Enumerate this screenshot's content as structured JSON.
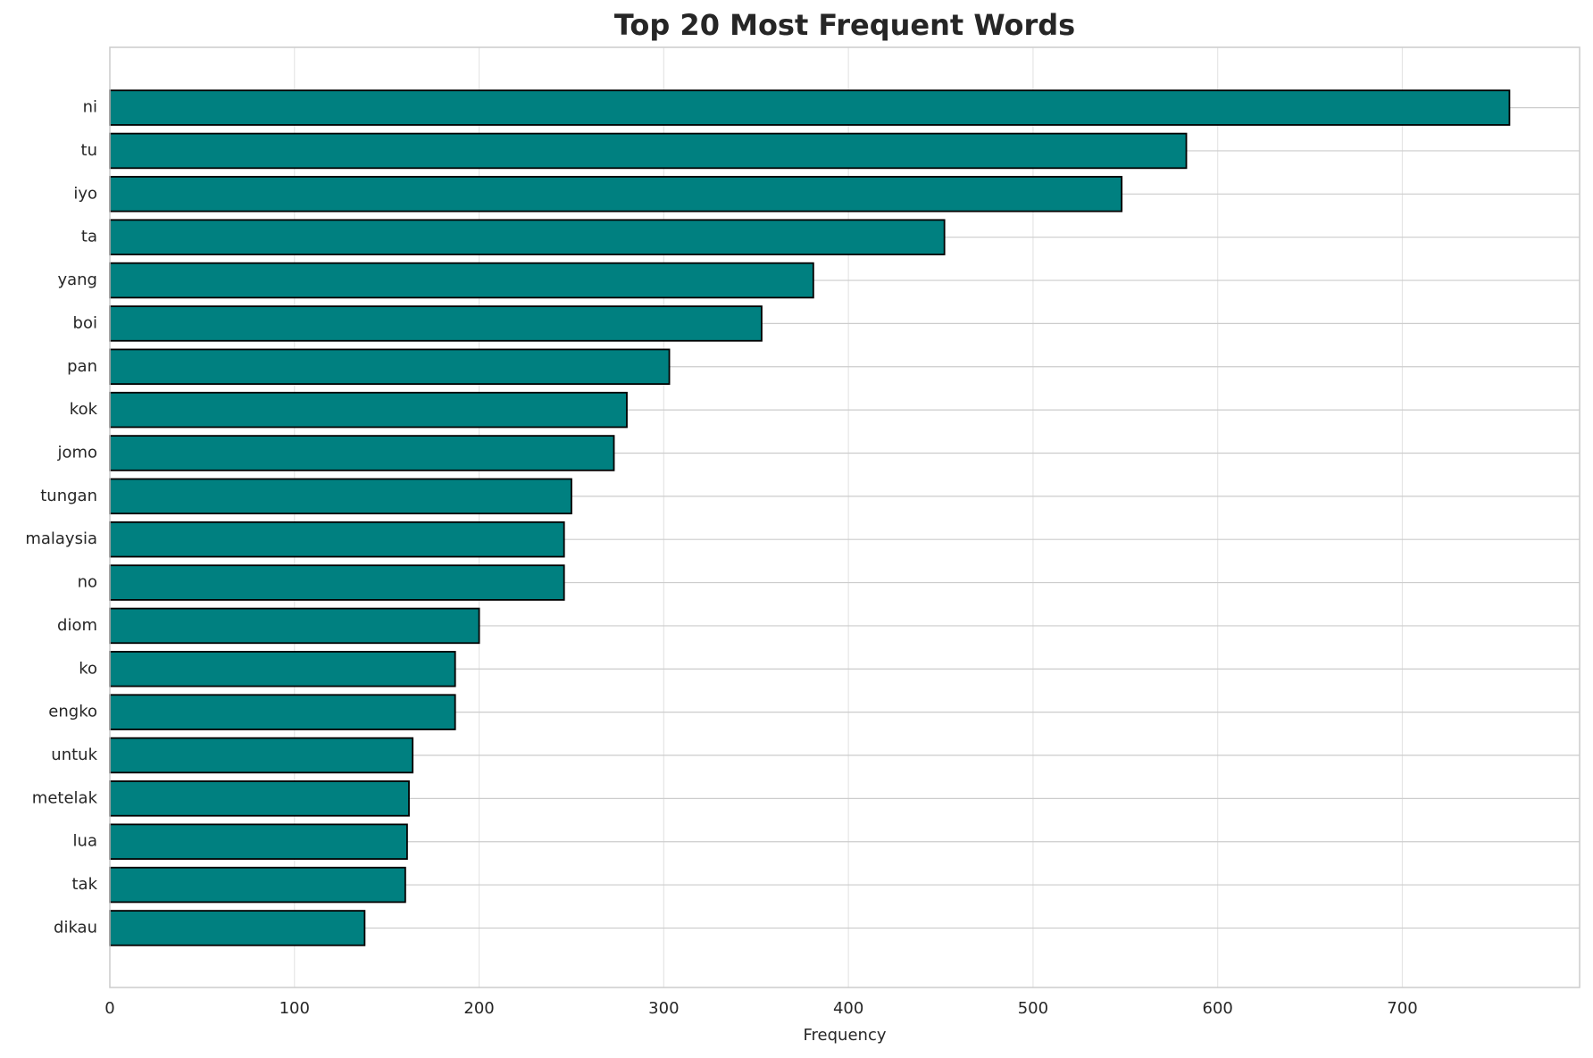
{
  "chart_data": {
    "type": "barh",
    "title": "Top 20 Most Frequent Words",
    "xlabel": "Frequency",
    "categories": [
      "ni",
      "tu",
      "iyo",
      "ta",
      "yang",
      "boi",
      "pan",
      "kok",
      "jomo",
      "tungan",
      "malaysia",
      "no",
      "diom",
      "ko",
      "engko",
      "untuk",
      "metelak",
      "lua",
      "tak",
      "dikau"
    ],
    "values": [
      758,
      583,
      548,
      452,
      381,
      353,
      303,
      280,
      273,
      250,
      246,
      246,
      200,
      187,
      187,
      164,
      162,
      161,
      160,
      138
    ],
    "color": "#008080",
    "edgecolor": "#000000",
    "xlim": [
      0,
      796
    ],
    "xticks": [
      0,
      100,
      200,
      300,
      400,
      500,
      600,
      700
    ],
    "grid": true
  }
}
